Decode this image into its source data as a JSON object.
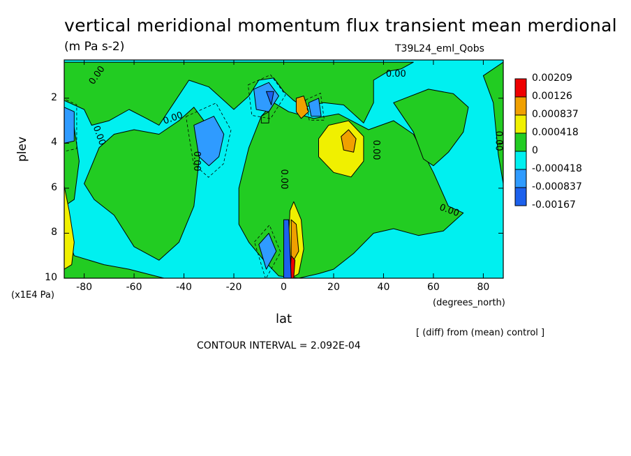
{
  "title": "vertical meridional momentum flux transient mean merdional",
  "units": "(m Pa s-2)",
  "run_name": "T39L24_eml_Qobs",
  "diff_note": "[ (diff) from (mean) control ]",
  "contour_interval": "CONTOUR INTERVAL = 2.092E-04",
  "colors": {
    "red": "#ee0000",
    "orange": "#f0a000",
    "yellow": "#f0f000",
    "green": "#22cc22",
    "cyan": "#00f0f0",
    "blue1": "#2f9bff",
    "blue2": "#1c61ec",
    "line": "#000000"
  },
  "chart_data": {
    "type": "contour",
    "title": "vertical meridional momentum flux transient mean merdional",
    "xlabel": "lat",
    "xunit": "(degrees_north)",
    "ylabel": "plev",
    "yunit": "(x1E4 Pa)",
    "xlim": [
      -88,
      88
    ],
    "ylim": [
      10,
      0.3
    ],
    "xticks": [
      -80,
      -60,
      -40,
      -20,
      0,
      20,
      40,
      60,
      80
    ],
    "xtick_labels": [
      "-80",
      "-60",
      "-40",
      "-20",
      "0",
      "20",
      "40",
      "60",
      "80"
    ],
    "yticks": [
      2,
      4,
      6,
      8,
      10
    ],
    "ytick_labels": [
      "2",
      "4",
      "6",
      "8",
      "10"
    ],
    "legend": {
      "placement": "right",
      "levels": [
        "0.00209",
        "0.00126",
        "0.000837",
        "0.000418",
        "0",
        "-0.000418",
        "-0.000837",
        "-0.00167"
      ],
      "colors": [
        "#ee0000",
        "#f0a000",
        "#f0f000",
        "#22cc22",
        "#00f0f0",
        "#2f9bff",
        "#1c61ec"
      ]
    },
    "base": "cyan",
    "regions": [
      {
        "color": "green",
        "points": [
          [
            -88,
            0.4
          ],
          [
            -88,
            2.1
          ],
          [
            -80,
            2.5
          ],
          [
            -77,
            3.2
          ],
          [
            -70,
            3.0
          ],
          [
            -62,
            2.5
          ],
          [
            -55,
            2.9
          ],
          [
            -50,
            3.2
          ],
          [
            -44,
            2.2
          ],
          [
            -38,
            1.2
          ],
          [
            -30,
            1.5
          ],
          [
            -20,
            2.5
          ],
          [
            -14,
            1.9
          ],
          [
            -10,
            1.2
          ],
          [
            -4,
            1.1
          ],
          [
            0,
            1.7
          ],
          [
            4,
            2.1
          ],
          [
            8,
            2.4
          ],
          [
            16,
            2.2
          ],
          [
            24,
            2.3
          ],
          [
            32,
            3.1
          ],
          [
            36,
            2.2
          ],
          [
            36,
            1.2
          ],
          [
            42,
            0.8
          ],
          [
            47,
            0.7
          ],
          [
            52,
            0.4
          ]
        ]
      },
      {
        "color": "green",
        "points": [
          [
            -88,
            2.8
          ],
          [
            -84,
            3.3
          ],
          [
            -82,
            4.8
          ],
          [
            -84,
            6.5
          ],
          [
            -88,
            6.8
          ]
        ]
      },
      {
        "color": "green",
        "points": [
          [
            -80,
            5.8
          ],
          [
            -74,
            4.2
          ],
          [
            -68,
            3.6
          ],
          [
            -60,
            3.4
          ],
          [
            -50,
            3.6
          ],
          [
            -42,
            3.0
          ],
          [
            -36,
            2.4
          ],
          [
            -32,
            3.0
          ],
          [
            -34,
            4.8
          ],
          [
            -36,
            6.8
          ],
          [
            -42,
            8.4
          ],
          [
            -50,
            9.2
          ],
          [
            -60,
            8.6
          ],
          [
            -68,
            7.2
          ],
          [
            -76,
            6.5
          ]
        ]
      },
      {
        "color": "green",
        "points": [
          [
            -18,
            6.0
          ],
          [
            -14,
            4.2
          ],
          [
            -9,
            2.8
          ],
          [
            -4,
            2.2
          ],
          [
            2,
            2.6
          ],
          [
            12,
            2.9
          ],
          [
            22,
            2.7
          ],
          [
            34,
            3.4
          ],
          [
            44,
            3.0
          ],
          [
            52,
            3.6
          ],
          [
            60,
            5.3
          ],
          [
            66,
            6.8
          ],
          [
            72,
            7.1
          ],
          [
            64,
            7.9
          ],
          [
            54,
            8.1
          ],
          [
            44,
            7.8
          ],
          [
            36,
            8.0
          ],
          [
            28,
            8.9
          ],
          [
            20,
            9.6
          ],
          [
            14,
            9.8
          ],
          [
            6,
            10
          ],
          [
            -2,
            9.9
          ],
          [
            -8,
            9.2
          ],
          [
            -14,
            8.4
          ],
          [
            -18,
            7.6
          ]
        ]
      },
      {
        "color": "green",
        "points": [
          [
            44,
            2.2
          ],
          [
            52,
            3.5
          ],
          [
            56,
            4.7
          ],
          [
            60,
            5.0
          ],
          [
            66,
            4.4
          ],
          [
            72,
            3.5
          ],
          [
            74,
            2.4
          ],
          [
            68,
            1.8
          ],
          [
            58,
            1.6
          ]
        ]
      },
      {
        "color": "green",
        "points": [
          [
            -88,
            7.8
          ],
          [
            -84,
            9.0
          ],
          [
            -72,
            9.4
          ],
          [
            -62,
            9.6
          ],
          [
            -48,
            10
          ],
          [
            -88,
            10
          ]
        ]
      },
      {
        "color": "green",
        "points": [
          [
            80,
            1.0
          ],
          [
            84,
            2.2
          ],
          [
            86,
            4.5
          ],
          [
            88,
            5.8
          ],
          [
            88,
            0.4
          ]
        ]
      },
      {
        "color": "yellow",
        "points": [
          [
            14,
            3.8
          ],
          [
            18,
            3.2
          ],
          [
            26,
            3.0
          ],
          [
            32,
            3.7
          ],
          [
            32,
            4.8
          ],
          [
            27,
            5.5
          ],
          [
            20,
            5.3
          ],
          [
            14,
            4.6
          ]
        ]
      },
      {
        "color": "yellow",
        "points": [
          [
            4,
            6.6
          ],
          [
            7,
            7.4
          ],
          [
            8,
            8.7
          ],
          [
            6,
            9.8
          ],
          [
            3,
            10
          ],
          [
            2,
            8.2
          ],
          [
            2.5,
            7.0
          ]
        ]
      },
      {
        "color": "yellow",
        "points": [
          [
            -88,
            5.9
          ],
          [
            -86,
            7.0
          ],
          [
            -84,
            8.4
          ],
          [
            -85,
            9.4
          ],
          [
            -88,
            9.6
          ]
        ]
      },
      {
        "color": "orange",
        "points": [
          [
            23,
            3.7
          ],
          [
            26,
            3.4
          ],
          [
            29,
            3.8
          ],
          [
            28,
            4.4
          ],
          [
            24,
            4.3
          ]
        ]
      },
      {
        "color": "orange",
        "points": [
          [
            5,
            2.0
          ],
          [
            8,
            1.9
          ],
          [
            10,
            2.6
          ],
          [
            7,
            2.9
          ],
          [
            5,
            2.6
          ]
        ]
      },
      {
        "color": "orange",
        "points": [
          [
            3,
            7.4
          ],
          [
            5,
            7.6
          ],
          [
            6,
            8.8
          ],
          [
            3,
            9.4
          ]
        ]
      },
      {
        "color": "red",
        "points": [
          [
            3,
            9.0
          ],
          [
            4.5,
            9.2
          ],
          [
            4,
            10
          ],
          [
            2.5,
            10
          ]
        ]
      },
      {
        "color": "blue1",
        "points": [
          [
            -36,
            3.2
          ],
          [
            -28,
            2.8
          ],
          [
            -24,
            3.6
          ],
          [
            -26,
            4.6
          ],
          [
            -30,
            5.0
          ],
          [
            -34,
            4.6
          ]
        ]
      },
      {
        "color": "blue1",
        "points": [
          [
            -12,
            1.6
          ],
          [
            -6,
            1.3
          ],
          [
            -2,
            1.9
          ],
          [
            -6,
            2.6
          ],
          [
            -11,
            2.5
          ]
        ]
      },
      {
        "color": "blue1",
        "points": [
          [
            10,
            2.2
          ],
          [
            14,
            2.0
          ],
          [
            15,
            2.8
          ],
          [
            11,
            2.8
          ]
        ]
      },
      {
        "color": "blue1",
        "points": [
          [
            -88,
            2.4
          ],
          [
            -84,
            2.6
          ],
          [
            -84,
            3.9
          ],
          [
            -88,
            4.0
          ]
        ]
      },
      {
        "color": "blue1",
        "points": [
          [
            -10,
            8.5
          ],
          [
            -6,
            8.0
          ],
          [
            -3,
            8.8
          ],
          [
            -7,
            9.6
          ]
        ]
      },
      {
        "color": "blue2",
        "points": [
          [
            -7,
            1.7
          ],
          [
            -4,
            1.7
          ],
          [
            -5,
            2.3
          ]
        ]
      },
      {
        "color": "blue2",
        "points": [
          [
            0,
            7.4
          ],
          [
            2,
            7.4
          ],
          [
            3,
            10
          ],
          [
            0,
            10
          ]
        ]
      },
      {
        "color": "green",
        "points": [
          [
            -9,
            2.8
          ],
          [
            -6,
            2.6
          ],
          [
            -6,
            3.1
          ],
          [
            -9,
            3.1
          ]
        ]
      }
    ],
    "labels": [
      {
        "text": "0.00",
        "x": -74,
        "y": 1.05,
        "rotate": -55
      },
      {
        "text": "0.00",
        "x": 45,
        "y": 1.05,
        "rotate": 0
      },
      {
        "text": "0.00",
        "x": -44,
        "y": 3.0,
        "rotate": -20
      },
      {
        "text": "0.00",
        "x": -75,
        "y": 3.7,
        "rotate": 70
      },
      {
        "text": "0.00",
        "x": -36,
        "y": 4.8,
        "rotate": 90
      },
      {
        "text": "0.00",
        "x": -1,
        "y": 5.6,
        "rotate": 90
      },
      {
        "text": "0.00",
        "x": 36,
        "y": 4.3,
        "rotate": 90
      },
      {
        "text": "0.00",
        "x": 85,
        "y": 3.9,
        "rotate": 90
      },
      {
        "text": "0.00",
        "x": 66,
        "y": 7.1,
        "rotate": 20
      }
    ]
  }
}
